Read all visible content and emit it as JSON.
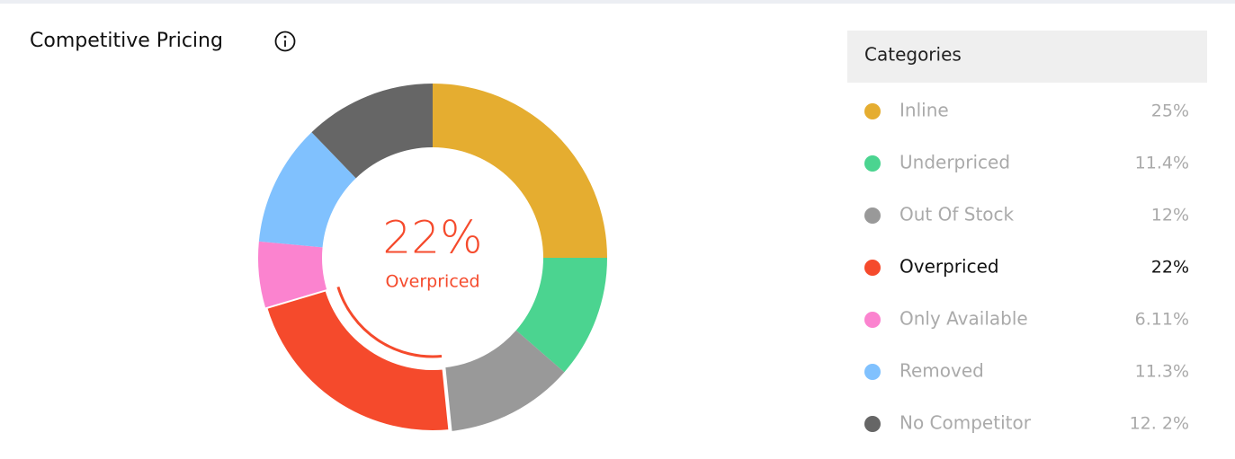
{
  "chart_data": {
    "type": "donut",
    "title": "Competitive Pricing",
    "legend_title": "Categories",
    "categories": [
      "Inline",
      "Underpriced",
      "Out Of Stock",
      "Overpriced",
      "Only Available",
      "Removed",
      "No Competitor"
    ],
    "values": [
      25,
      11.4,
      12,
      22,
      6.11,
      11.3,
      12.2
    ],
    "value_labels": [
      "25%",
      "11.4%",
      "12%",
      "22%",
      "6.11%",
      "11.3%",
      "12. 2%"
    ],
    "colors": [
      "#e5ad30",
      "#4bd490",
      "#999999",
      "#f54a2c",
      "#fb83cf",
      "#80c1fe",
      "#666666"
    ],
    "highlight": 3,
    "legend": "right"
  }
}
